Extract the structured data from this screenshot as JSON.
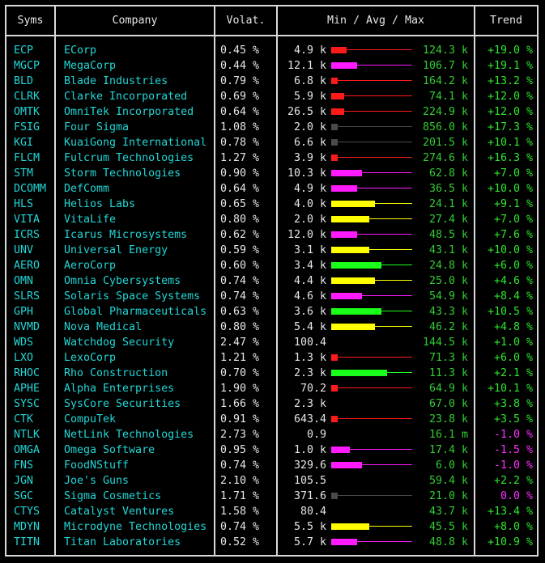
{
  "headers": {
    "syms": "Syms",
    "company": "Company",
    "volat": "Volat.",
    "range": "Min / Avg / Max",
    "trend": "Trend"
  },
  "colors": {
    "red": "#ff1a1a",
    "magenta": "#ff1aff",
    "gray": "#4a4a4a",
    "yellow": "#ffff00",
    "green": "#1aff1a",
    "cyan": "#22d6d6",
    "up": "#2ee62e",
    "down": "#ff30ff"
  },
  "rows": [
    {
      "sym": "ECP",
      "company": "ECorp",
      "volat": "0.45 %",
      "min": "4.9 k",
      "max": "124.3 k",
      "trend": "+19.0 %",
      "color": "red",
      "avg": 0.19,
      "dir": "up"
    },
    {
      "sym": "MGCP",
      "company": "MegaCorp",
      "volat": "0.44 %",
      "min": "12.1 k",
      "max": "106.7 k",
      "trend": "+19.1 %",
      "color": "magenta",
      "avg": 0.32,
      "dir": "up"
    },
    {
      "sym": "BLD",
      "company": "Blade Industries",
      "volat": "0.79 %",
      "min": "6.8 k",
      "max": "164.2 k",
      "trend": "+13.2 %",
      "color": "red",
      "avg": 0.08,
      "dir": "up"
    },
    {
      "sym": "CLRK",
      "company": "Clarke Incorporated",
      "volat": "0.69 %",
      "min": "5.9 k",
      "max": "74.1 k",
      "trend": "+12.0 %",
      "color": "red",
      "avg": 0.16,
      "dir": "up"
    },
    {
      "sym": "OMTK",
      "company": "OmniTek Incorporated",
      "volat": "0.64 %",
      "min": "26.5 k",
      "max": "224.9 k",
      "trend": "+12.0 %",
      "color": "red",
      "avg": 0.16,
      "dir": "up"
    },
    {
      "sym": "FSIG",
      "company": "Four Sigma",
      "volat": "1.08 %",
      "min": "2.0 k",
      "max": "856.0 k",
      "trend": "+17.3 %",
      "color": "gray",
      "avg": 0.08,
      "dir": "up"
    },
    {
      "sym": "KGI",
      "company": "KuaiGong International",
      "volat": "0.78 %",
      "min": "6.6 k",
      "max": "201.5 k",
      "trend": "+10.1 %",
      "color": "gray",
      "avg": 0.08,
      "dir": "up"
    },
    {
      "sym": "FLCM",
      "company": "Fulcrum Technologies",
      "volat": "1.27 %",
      "min": "3.9 k",
      "max": "274.6 k",
      "trend": "+16.3 %",
      "color": "red",
      "avg": 0.08,
      "dir": "up"
    },
    {
      "sym": "STM",
      "company": "Storm Technologies",
      "volat": "0.90 %",
      "min": "10.3 k",
      "max": "62.8 k",
      "trend": "+7.0 %",
      "color": "magenta",
      "avg": 0.38,
      "dir": "up"
    },
    {
      "sym": "DCOMM",
      "company": "DefComm",
      "volat": "0.64 %",
      "min": "4.9 k",
      "max": "36.5 k",
      "trend": "+10.0 %",
      "color": "magenta",
      "avg": 0.32,
      "dir": "up"
    },
    {
      "sym": "HLS",
      "company": "Helios Labs",
      "volat": "0.65 %",
      "min": "4.0 k",
      "max": "24.1 k",
      "trend": "+9.1 %",
      "color": "yellow",
      "avg": 0.54,
      "dir": "up"
    },
    {
      "sym": "VITA",
      "company": "VitaLife",
      "volat": "0.80 %",
      "min": "2.0 k",
      "max": "27.4 k",
      "trend": "+7.0 %",
      "color": "yellow",
      "avg": 0.47,
      "dir": "up"
    },
    {
      "sym": "ICRS",
      "company": "Icarus Microsystems",
      "volat": "0.62 %",
      "min": "12.0 k",
      "max": "48.5 k",
      "trend": "+7.6 %",
      "color": "magenta",
      "avg": 0.32,
      "dir": "up"
    },
    {
      "sym": "UNV",
      "company": "Universal Energy",
      "volat": "0.59 %",
      "min": "3.1 k",
      "max": "43.1 k",
      "trend": "+10.0 %",
      "color": "yellow",
      "avg": 0.47,
      "dir": "up"
    },
    {
      "sym": "AERO",
      "company": "AeroCorp",
      "volat": "0.60 %",
      "min": "3.4 k",
      "max": "24.8 k",
      "trend": "+6.0 %",
      "color": "green",
      "avg": 0.62,
      "dir": "up"
    },
    {
      "sym": "OMN",
      "company": "Omnia Cybersystems",
      "volat": "0.74 %",
      "min": "4.4 k",
      "max": "25.0 k",
      "trend": "+4.6 %",
      "color": "yellow",
      "avg": 0.54,
      "dir": "up"
    },
    {
      "sym": "SLRS",
      "company": "Solaris Space Systems",
      "volat": "0.74 %",
      "min": "4.6 k",
      "max": "54.9 k",
      "trend": "+8.4 %",
      "color": "magenta",
      "avg": 0.38,
      "dir": "up"
    },
    {
      "sym": "GPH",
      "company": "Global Pharmaceuticals",
      "volat": "0.63 %",
      "min": "3.6 k",
      "max": "43.3 k",
      "trend": "+10.5 %",
      "color": "green",
      "avg": 0.62,
      "dir": "up"
    },
    {
      "sym": "NVMD",
      "company": "Nova Medical",
      "volat": "0.80 %",
      "min": "5.4 k",
      "max": "46.2 k",
      "trend": "+4.8 %",
      "color": "yellow",
      "avg": 0.54,
      "dir": "up"
    },
    {
      "sym": "WDS",
      "company": "Watchdog Security",
      "volat": "2.47 %",
      "min": "100.4",
      "max": "144.5 k",
      "trend": "+1.0 %",
      "color": "none",
      "avg": 0,
      "dir": "up"
    },
    {
      "sym": "LXO",
      "company": "LexoCorp",
      "volat": "1.21 %",
      "min": "1.3 k",
      "max": "71.3 k",
      "trend": "+6.0 %",
      "color": "red",
      "avg": 0.08,
      "dir": "up"
    },
    {
      "sym": "RHOC",
      "company": "Rho Construction",
      "volat": "0.70 %",
      "min": "2.3 k",
      "max": "11.3 k",
      "trend": "+2.1 %",
      "color": "green",
      "avg": 0.69,
      "dir": "up"
    },
    {
      "sym": "APHE",
      "company": "Alpha Enterprises",
      "volat": "1.90 %",
      "min": "70.2",
      "max": "64.9 k",
      "trend": "+10.1 %",
      "color": "red",
      "avg": 0.08,
      "dir": "up"
    },
    {
      "sym": "SYSC",
      "company": "SysCore Securities",
      "volat": "1.66 %",
      "min": "2.3 k",
      "max": "67.0 k",
      "trend": "+3.8 %",
      "color": "none",
      "avg": 0,
      "dir": "up"
    },
    {
      "sym": "CTK",
      "company": "CompuTek",
      "volat": "0.91 %",
      "min": "643.4",
      "max": "23.8 k",
      "trend": "+3.5 %",
      "color": "red",
      "avg": 0.08,
      "dir": "up"
    },
    {
      "sym": "NTLK",
      "company": "NetLink Technologies",
      "volat": "2.73 %",
      "min": "0.9",
      "max": "16.1 m",
      "trend": "-1.0 %",
      "color": "none",
      "avg": 0,
      "dir": "down"
    },
    {
      "sym": "OMGA",
      "company": "Omega Software",
      "volat": "0.95 %",
      "min": "1.0 k",
      "max": "17.4 k",
      "trend": "-1.5 %",
      "color": "magenta",
      "avg": 0.23,
      "dir": "down"
    },
    {
      "sym": "FNS",
      "company": "FoodNStuff",
      "volat": "0.74 %",
      "min": "329.6",
      "max": "6.0 k",
      "trend": "-1.0 %",
      "color": "magenta",
      "avg": 0.38,
      "dir": "down"
    },
    {
      "sym": "JGN",
      "company": "Joe's Guns",
      "volat": "2.10 %",
      "min": "105.5",
      "max": "59.4 k",
      "trend": "+2.2 %",
      "color": "none",
      "avg": 0,
      "dir": "up"
    },
    {
      "sym": "SGC",
      "company": "Sigma Cosmetics",
      "volat": "1.71 %",
      "min": "371.6",
      "max": "21.0 k",
      "trend": "0.0 %",
      "color": "gray",
      "avg": 0.08,
      "dir": "down"
    },
    {
      "sym": "CTYS",
      "company": "Catalyst Ventures",
      "volat": "1.58 %",
      "min": "80.4",
      "max": "43.7 k",
      "trend": "+13.4 %",
      "color": "none",
      "avg": 0,
      "dir": "up"
    },
    {
      "sym": "MDYN",
      "company": "Microdyne Technologies",
      "volat": "0.74 %",
      "min": "5.5 k",
      "max": "45.5 k",
      "trend": "+8.0 %",
      "color": "yellow",
      "avg": 0.47,
      "dir": "up"
    },
    {
      "sym": "TITN",
      "company": "Titan Laboratories",
      "volat": "0.52 %",
      "min": "5.7 k",
      "max": "48.8 k",
      "trend": "+10.9 %",
      "color": "magenta",
      "avg": 0.32,
      "dir": "up"
    }
  ]
}
